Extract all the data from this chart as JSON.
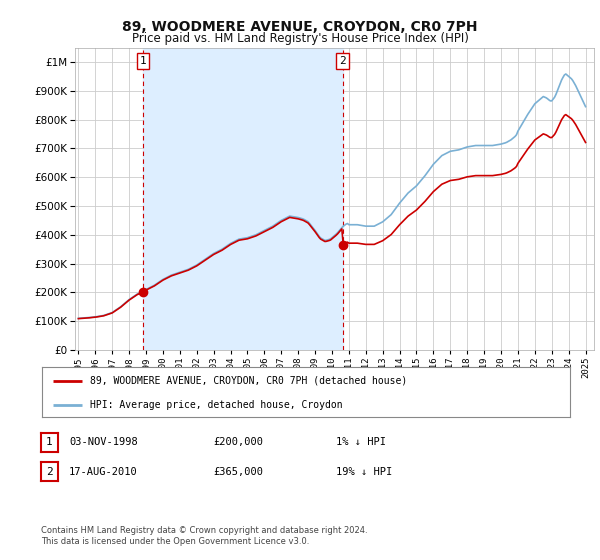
{
  "title": "89, WOODMERE AVENUE, CROYDON, CR0 7PH",
  "subtitle": "Price paid vs. HM Land Registry's House Price Index (HPI)",
  "legend_line1": "89, WOODMERE AVENUE, CROYDON, CR0 7PH (detached house)",
  "legend_line2": "HPI: Average price, detached house, Croydon",
  "footnote": "Contains HM Land Registry data © Crown copyright and database right 2024.\nThis data is licensed under the Open Government Licence v3.0.",
  "sale1_date": "03-NOV-1998",
  "sale1_price": 200000,
  "sale2_date": "17-AUG-2010",
  "sale2_price": 365000,
  "sale1_year": 1998.84,
  "sale2_year": 2010.63,
  "annotation1": "1",
  "annotation2": "2",
  "property_color": "#cc0000",
  "hpi_color": "#7ab0d4",
  "shade_color": "#ddeeff",
  "background_color": "#ffffff",
  "grid_color": "#cccccc",
  "ylim": [
    0,
    1050000
  ],
  "xlim_start": 1994.8,
  "xlim_end": 2025.5,
  "table_row1": [
    "1",
    "03-NOV-1998",
    "£200,000",
    "1% ↓ HPI"
  ],
  "table_row2": [
    "2",
    "17-AUG-2010",
    "£365,000",
    "19% ↓ HPI"
  ],
  "hpi_years": [
    1995.0,
    1995.1,
    1995.2,
    1995.3,
    1995.4,
    1995.5,
    1995.6,
    1995.7,
    1995.8,
    1995.9,
    1996.0,
    1996.1,
    1996.2,
    1996.3,
    1996.4,
    1996.5,
    1996.6,
    1996.7,
    1996.8,
    1996.9,
    1997.0,
    1997.1,
    1997.2,
    1997.3,
    1997.4,
    1997.5,
    1997.6,
    1997.7,
    1997.8,
    1997.9,
    1998.0,
    1998.1,
    1998.2,
    1998.3,
    1998.4,
    1998.5,
    1998.6,
    1998.7,
    1998.8,
    1998.9,
    1999.0,
    1999.1,
    1999.2,
    1999.3,
    1999.4,
    1999.5,
    1999.6,
    1999.7,
    1999.8,
    1999.9,
    2000.0,
    2000.1,
    2000.2,
    2000.3,
    2000.4,
    2000.5,
    2000.6,
    2000.7,
    2000.8,
    2000.9,
    2001.0,
    2001.1,
    2001.2,
    2001.3,
    2001.4,
    2001.5,
    2001.6,
    2001.7,
    2001.8,
    2001.9,
    2002.0,
    2002.1,
    2002.2,
    2002.3,
    2002.4,
    2002.5,
    2002.6,
    2002.7,
    2002.8,
    2002.9,
    2003.0,
    2003.1,
    2003.2,
    2003.3,
    2003.4,
    2003.5,
    2003.6,
    2003.7,
    2003.8,
    2003.9,
    2004.0,
    2004.1,
    2004.2,
    2004.3,
    2004.4,
    2004.5,
    2004.6,
    2004.7,
    2004.8,
    2004.9,
    2005.0,
    2005.1,
    2005.2,
    2005.3,
    2005.4,
    2005.5,
    2005.6,
    2005.7,
    2005.8,
    2005.9,
    2006.0,
    2006.1,
    2006.2,
    2006.3,
    2006.4,
    2006.5,
    2006.6,
    2006.7,
    2006.8,
    2006.9,
    2007.0,
    2007.1,
    2007.2,
    2007.3,
    2007.4,
    2007.5,
    2007.6,
    2007.7,
    2007.8,
    2007.9,
    2008.0,
    2008.1,
    2008.2,
    2008.3,
    2008.4,
    2008.5,
    2008.6,
    2008.7,
    2008.8,
    2008.9,
    2009.0,
    2009.1,
    2009.2,
    2009.3,
    2009.4,
    2009.5,
    2009.6,
    2009.7,
    2009.8,
    2009.9,
    2010.0,
    2010.1,
    2010.2,
    2010.3,
    2010.4,
    2010.5,
    2010.6,
    2010.7,
    2010.8,
    2010.9,
    2011.0,
    2011.1,
    2011.2,
    2011.3,
    2011.4,
    2011.5,
    2011.6,
    2011.7,
    2011.8,
    2011.9,
    2012.0,
    2012.1,
    2012.2,
    2012.3,
    2012.4,
    2012.5,
    2012.6,
    2012.7,
    2012.8,
    2012.9,
    2013.0,
    2013.1,
    2013.2,
    2013.3,
    2013.4,
    2013.5,
    2013.6,
    2013.7,
    2013.8,
    2013.9,
    2014.0,
    2014.1,
    2014.2,
    2014.3,
    2014.4,
    2014.5,
    2014.6,
    2014.7,
    2014.8,
    2014.9,
    2015.0,
    2015.1,
    2015.2,
    2015.3,
    2015.4,
    2015.5,
    2015.6,
    2015.7,
    2015.8,
    2015.9,
    2016.0,
    2016.1,
    2016.2,
    2016.3,
    2016.4,
    2016.5,
    2016.6,
    2016.7,
    2016.8,
    2016.9,
    2017.0,
    2017.1,
    2017.2,
    2017.3,
    2017.4,
    2017.5,
    2017.6,
    2017.7,
    2017.8,
    2017.9,
    2018.0,
    2018.1,
    2018.2,
    2018.3,
    2018.4,
    2018.5,
    2018.6,
    2018.7,
    2018.8,
    2018.9,
    2019.0,
    2019.1,
    2019.2,
    2019.3,
    2019.4,
    2019.5,
    2019.6,
    2019.7,
    2019.8,
    2019.9,
    2020.0,
    2020.1,
    2020.2,
    2020.3,
    2020.4,
    2020.5,
    2020.6,
    2020.7,
    2020.8,
    2020.9,
    2021.0,
    2021.1,
    2021.2,
    2021.3,
    2021.4,
    2021.5,
    2021.6,
    2021.7,
    2021.8,
    2021.9,
    2022.0,
    2022.1,
    2022.2,
    2022.3,
    2022.4,
    2022.5,
    2022.6,
    2022.7,
    2022.8,
    2022.9,
    2023.0,
    2023.1,
    2023.2,
    2023.3,
    2023.4,
    2023.5,
    2023.6,
    2023.7,
    2023.8,
    2023.9,
    2024.0,
    2024.1,
    2024.2,
    2024.3,
    2024.4,
    2024.5,
    2024.6,
    2024.7,
    2024.8,
    2024.9,
    2025.0
  ]
}
